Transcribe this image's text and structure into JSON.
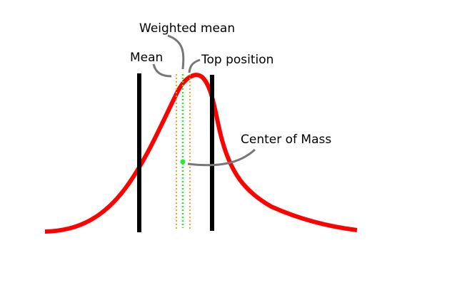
{
  "labels": {
    "weighted_mean": "Weighted mean",
    "mean": "Mean",
    "top_position": "Top position",
    "center_of_mass": "Center of Mass"
  },
  "colors": {
    "curve": "#ff0000",
    "boundary": "#000000",
    "mean_line": "#f5a623",
    "weighted_mean_line": "#22ee22",
    "center_of_mass_point": "#22ee22",
    "callout": "#777777"
  }
}
